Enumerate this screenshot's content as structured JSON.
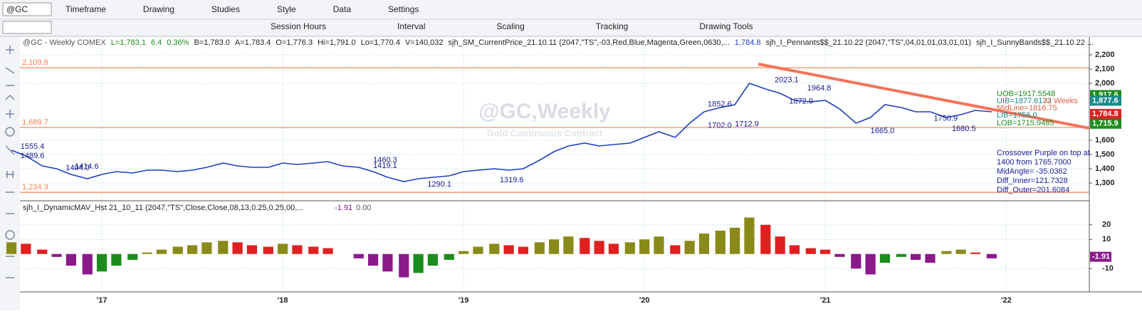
{
  "toolbar": {
    "symbol": "@GC",
    "row1": [
      "Timeframe",
      "Drawing",
      "Studies",
      "Style",
      "Data",
      "Settings"
    ],
    "row2": [
      "Session Hours",
      "Interval",
      "Scaling",
      "Tracking",
      "Drawing Tools"
    ]
  },
  "header_items": [
    "@GC - Weekly  COMEX",
    "L=1,783.1",
    "6.4",
    "0.36%",
    "B=1,783.0",
    "A=1,783.4",
    "O=1,776.3",
    "Hi=1,791.0",
    "Lo=1,770.4",
    "V=140,032",
    "sjh_SM_CurrentPrice_21.10.11 (2047,\"TS\",-03,Red,Blue,Magenta,Green,0630,...",
    "1,784.8",
    "sjh_I_Pennants$$_21.10.22 (2047,\"TS\",04,01,01,03,01,01)",
    "sjh_I_SunnyBands$$_21.10.22 ..."
  ],
  "watermark": {
    "title": "@GC,Weekly",
    "subtitle": "Gold Continuous Contract"
  },
  "chart_data": [
    {
      "type": "line",
      "color": "#1f3fbf",
      "x": [
        2016.5,
        2016.58,
        2016.67,
        2016.75,
        2016.83,
        2016.92,
        2017.0,
        2017.08,
        2017.17,
        2017.25,
        2017.33,
        2017.42,
        2017.5,
        2017.58,
        2017.67,
        2017.75,
        2017.83,
        2017.92,
        2018.0,
        2018.08,
        2018.17,
        2018.25,
        2018.33,
        2018.42,
        2018.5,
        2018.58,
        2018.67,
        2018.75,
        2018.83,
        2018.92,
        2019.0,
        2019.08,
        2019.17,
        2019.25,
        2019.33,
        2019.42,
        2019.5,
        2019.58,
        2019.67,
        2019.75,
        2019.83,
        2019.92,
        2020.0,
        2020.08,
        2020.17,
        2020.25,
        2020.33,
        2020.42,
        2020.5,
        2020.58,
        2020.67,
        2020.75,
        2020.83,
        2020.92,
        2021.0,
        2021.08,
        2021.17,
        2021.25,
        2021.33,
        2021.42,
        2021.5,
        2021.58,
        2021.67,
        2021.75,
        2021.83,
        2021.92
      ],
      "values": [
        1530,
        1490,
        1420,
        1400,
        1360,
        1330,
        1360,
        1380,
        1370,
        1390,
        1390,
        1380,
        1390,
        1410,
        1440,
        1420,
        1410,
        1410,
        1440,
        1430,
        1440,
        1450,
        1420,
        1410,
        1380,
        1340,
        1310,
        1330,
        1340,
        1350,
        1380,
        1390,
        1400,
        1390,
        1400,
        1460,
        1520,
        1560,
        1580,
        1560,
        1570,
        1580,
        1620,
        1660,
        1620,
        1720,
        1800,
        1830,
        1850,
        2000,
        1960,
        1930,
        1880,
        1870,
        1880,
        1820,
        1720,
        1760,
        1850,
        1830,
        1800,
        1800,
        1760,
        1780,
        1810,
        1800
      ],
      "xlim": [
        2016.547,
        2022.46
      ],
      "ylim": [
        1185,
        2325
      ],
      "xticks": [
        {
          "value": 2017,
          "label": "'17"
        },
        {
          "value": 2018,
          "label": "'18"
        },
        {
          "value": 2019,
          "label": "'19"
        },
        {
          "value": 2020,
          "label": "'20"
        },
        {
          "value": 2021,
          "label": "'21"
        },
        {
          "value": 2022,
          "label": "'22"
        }
      ],
      "yticks": [
        {
          "value": 2200,
          "label": "2,200"
        },
        {
          "value": 2100,
          "label": "2,100"
        },
        {
          "value": 2000,
          "label": "2,000"
        },
        {
          "value": 1600,
          "label": "1,600"
        },
        {
          "value": 1500,
          "label": "1,500"
        },
        {
          "value": 1400,
          "label": "1,400"
        },
        {
          "value": 1300,
          "label": "1,300"
        }
      ],
      "grid": true,
      "hlines": [
        {
          "value": 2109.8,
          "label": "2,109.8"
        },
        {
          "value": 1689.7,
          "label": "1,689.7"
        },
        {
          "value": 1234.3,
          "label": "1,234.3"
        }
      ],
      "hline_color": "#f4824f",
      "trendline": {
        "x": [
          2020.63,
          2022.46
        ],
        "values": [
          2135,
          1685
        ],
        "color": "#f4735a"
      },
      "price_boxes": [
        {
          "value": 1917.6,
          "label": "1,917.6",
          "color": "#1c8c1c"
        },
        {
          "value": 1877.6,
          "label": "1,877.6",
          "color": "#1a8a8a"
        },
        {
          "value": 1784.8,
          "label": "1,784.8",
          "color": "#e02020"
        },
        {
          "value": 1715.9,
          "label": "1,715.9",
          "color": "#1c8c1c"
        }
      ],
      "swings": [
        {
          "x": 2016.55,
          "value": 1555.4
        },
        {
          "x": 2016.55,
          "value": 1489.6
        },
        {
          "x": 2016.8,
          "value": {
            "value": 1404.0,
            "label": "1404.0"
          }
        },
        {
          "x": 2016.85,
          "value": 1414.6
        },
        {
          "x": 2018.5,
          "value": 1460.3
        },
        {
          "x": 2018.5,
          "value": 1419.1
        },
        {
          "x": 2018.8,
          "value": 1290.1
        },
        {
          "x": 2019.2,
          "value": 1319.6
        },
        {
          "x": 2020.35,
          "value": 1852.6
        },
        {
          "x": 2020.8,
          "value": 1872.9
        },
        {
          "x": 2020.9,
          "value": 1964.8
        },
        {
          "x": 2020.72,
          "value": 2023.1
        },
        {
          "x": 2020.35,
          "value": {
            "value": 1702.0,
            "label": "1702.0"
          }
        },
        {
          "x": 2020.5,
          "value": 1712.9
        },
        {
          "x": 2021.25,
          "value": {
            "value": 1665.0,
            "label": "1665.0"
          }
        },
        {
          "x": 2021.6,
          "value": 1750.9
        },
        {
          "x": 2021.7,
          "value": 1680.5
        }
      ],
      "band_labels": [
        "UOB=1917.5548",
        "UIB=1877.6173",
        "MidLine=1816.75",
        "32 Weeks",
        "LIB=1756.0",
        "LOB=1715.9465"
      ],
      "notes": [
        "Crossover Purple on top at",
        "1400 from 1765.7000",
        "MidAngle= -35.0362",
        "Diff_Inner=121.7328",
        "Diff_Outer=201.6084"
      ]
    },
    {
      "type": "histogram-osc",
      "title": "sjh_I_DynamicMAV_Hst 21_10_11 (2047,\"TS\",Close,Close,08,13,0.25,0.25,00,...",
      "readings": [
        "-1.91",
        "0.00"
      ],
      "x": [
        2016.5,
        2016.58,
        2016.67,
        2016.75,
        2016.83,
        2016.92,
        2017.0,
        2017.08,
        2017.17,
        2017.25,
        2017.33,
        2017.42,
        2017.5,
        2017.58,
        2017.67,
        2017.75,
        2017.83,
        2017.92,
        2018.0,
        2018.08,
        2018.17,
        2018.25,
        2018.33,
        2018.42,
        2018.5,
        2018.58,
        2018.67,
        2018.75,
        2018.83,
        2018.92,
        2019.0,
        2019.08,
        2019.17,
        2019.25,
        2019.33,
        2019.42,
        2019.5,
        2019.58,
        2019.67,
        2019.75,
        2019.83,
        2019.92,
        2020.0,
        2020.08,
        2020.17,
        2020.25,
        2020.33,
        2020.42,
        2020.5,
        2020.58,
        2020.67,
        2020.75,
        2020.83,
        2020.92,
        2021.0,
        2021.08,
        2021.17,
        2021.25,
        2021.33,
        2021.42,
        2021.5,
        2021.58,
        2021.67,
        2021.75,
        2021.83,
        2021.92
      ],
      "values": [
        8,
        7,
        3,
        -2,
        -8,
        -14,
        -12,
        -8,
        -4,
        1,
        3,
        5,
        6,
        8,
        9,
        8,
        6,
        5,
        7,
        6,
        5,
        4,
        0,
        -3,
        -8,
        -12,
        -16,
        -13,
        -8,
        -4,
        2,
        5,
        7,
        6,
        5,
        8,
        10,
        12,
        11,
        9,
        7,
        8,
        10,
        12,
        6,
        9,
        14,
        16,
        18,
        25,
        20,
        12,
        6,
        4,
        3,
        -2,
        -10,
        -14,
        -6,
        -2,
        -4,
        -6,
        2,
        3,
        1,
        -3
      ],
      "ylim": [
        -26,
        35
      ],
      "yticks": [
        20,
        10,
        -10
      ],
      "palette": {
        "pos_up": "#8a8a1a",
        "pos_down": "#e02020",
        "neg_down": "#8a1a8a",
        "neg_up": "#1c8c1c"
      },
      "last_value": {
        "value": -1.91,
        "label": "-1.91",
        "color": "#8a1a8a"
      }
    }
  ]
}
